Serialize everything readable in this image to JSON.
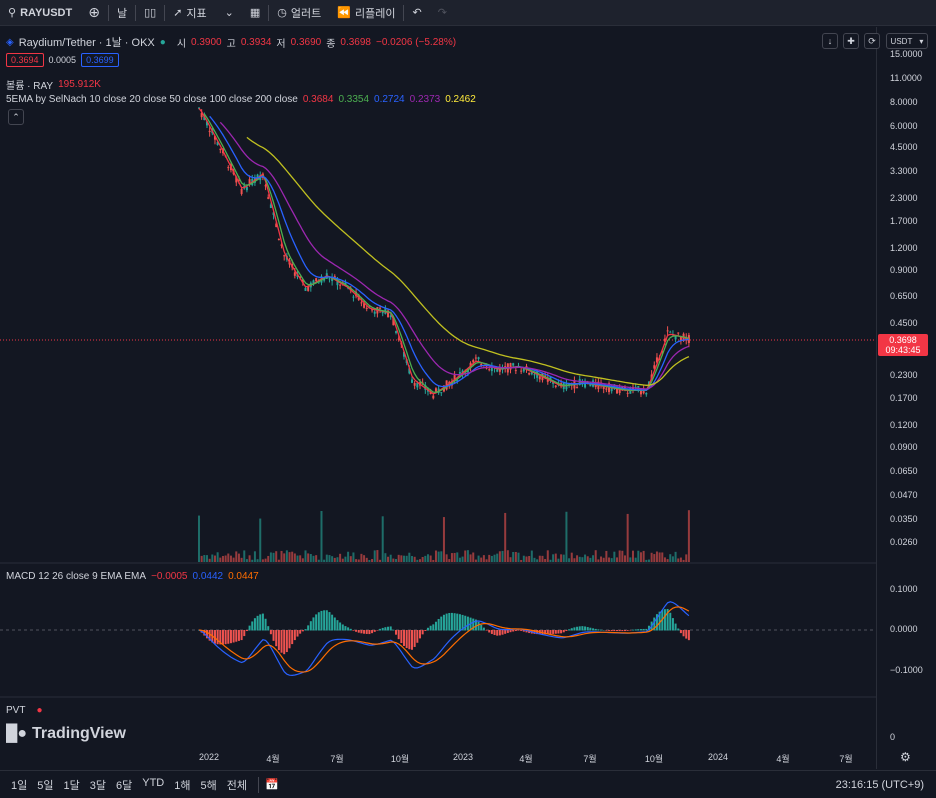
{
  "toolbar": {
    "symbol": "RAYUSDT",
    "interval": "날",
    "indicators": "지표",
    "alerts": "얼러트",
    "replay": "리플레이"
  },
  "legend": {
    "title": "Raydium/Tether · 1날 · OKX",
    "open_label": "시",
    "open": "0.3900",
    "high_label": "고",
    "high": "0.3934",
    "low_label": "저",
    "low": "0.3690",
    "close_label": "종",
    "close": "0.3698",
    "change": "−0.0206 (−5.28%)",
    "bid": "0.3694",
    "spread": "0.0005",
    "ask": "0.3699",
    "volume_label": "볼륨 · RAY",
    "volume": "195.912K",
    "ema_label": "5EMA by SelNach 10 close 20 close 50 close 100 close 200 close",
    "ema_values": [
      "0.3684",
      "0.3354",
      "0.2724",
      "0.2373",
      "0.2462"
    ],
    "macd_label": "MACD 12 26 close 9 EMA EMA",
    "macd_values": [
      "−0.0005",
      "0.0442",
      "0.0447"
    ],
    "pvt_label": "PVT"
  },
  "quote_currency": "USDT",
  "price_tag": {
    "price": "0.3698",
    "countdown": "09:43:45"
  },
  "price_axis_ticks": [
    "15.0000",
    "11.0000",
    "8.0000",
    "6.0000",
    "4.5000",
    "3.3000",
    "2.3000",
    "1.7000",
    "1.2000",
    "0.9000",
    "0.6500",
    "0.4500",
    "0.2300",
    "0.1700",
    "0.1200",
    "0.0900",
    "0.0650",
    "0.0470",
    "0.0350",
    "0.0260"
  ],
  "macd_axis_ticks": [
    "0.1000",
    "0.0000",
    "−0.1000"
  ],
  "pvt_axis_ticks": [
    "0"
  ],
  "time_axis_ticks": [
    "2022",
    "4월",
    "7월",
    "10월",
    "2023",
    "4월",
    "7월",
    "10월",
    "2024",
    "4월",
    "7월"
  ],
  "brand": "TradingView",
  "ranges": [
    "1일",
    "5일",
    "1달",
    "3달",
    "6달",
    "YTD",
    "1해",
    "5해",
    "전체"
  ],
  "clock": "23:16:15 (UTC+9)",
  "colors": {
    "up": "#26a69a",
    "down": "#ef5350",
    "ema10": "#f23645",
    "ema20": "#4caf50",
    "ema50": "#2962ff",
    "ema100": "#9c27b0",
    "ema200": "#c0c020",
    "macd_line": "#2962ff",
    "signal_line": "#ff6d00"
  },
  "chart_data": {
    "type": "line",
    "title": "Raydium/Tether · 1날 · OKX",
    "x": [
      "2022-01",
      "2022-02",
      "2022-03",
      "2022-04",
      "2022-05",
      "2022-06",
      "2022-07",
      "2022-08",
      "2022-09",
      "2022-10",
      "2022-11",
      "2022-12",
      "2023-01",
      "2023-02",
      "2023-03",
      "2023-04",
      "2023-05",
      "2023-06",
      "2023-07",
      "2023-08",
      "2023-09",
      "2023-10",
      "2023-11",
      "2023-12"
    ],
    "series": [
      {
        "name": "RAYUSDT",
        "values": [
          7.5,
          4.5,
          2.6,
          3.2,
          1.1,
          0.72,
          0.85,
          0.72,
          0.55,
          0.52,
          0.22,
          0.18,
          0.22,
          0.28,
          0.25,
          0.26,
          0.23,
          0.2,
          0.21,
          0.2,
          0.19,
          0.19,
          0.4,
          0.3698
        ]
      }
    ],
    "ylim": [
      0.024,
      15
    ],
    "y_scale": "log"
  }
}
